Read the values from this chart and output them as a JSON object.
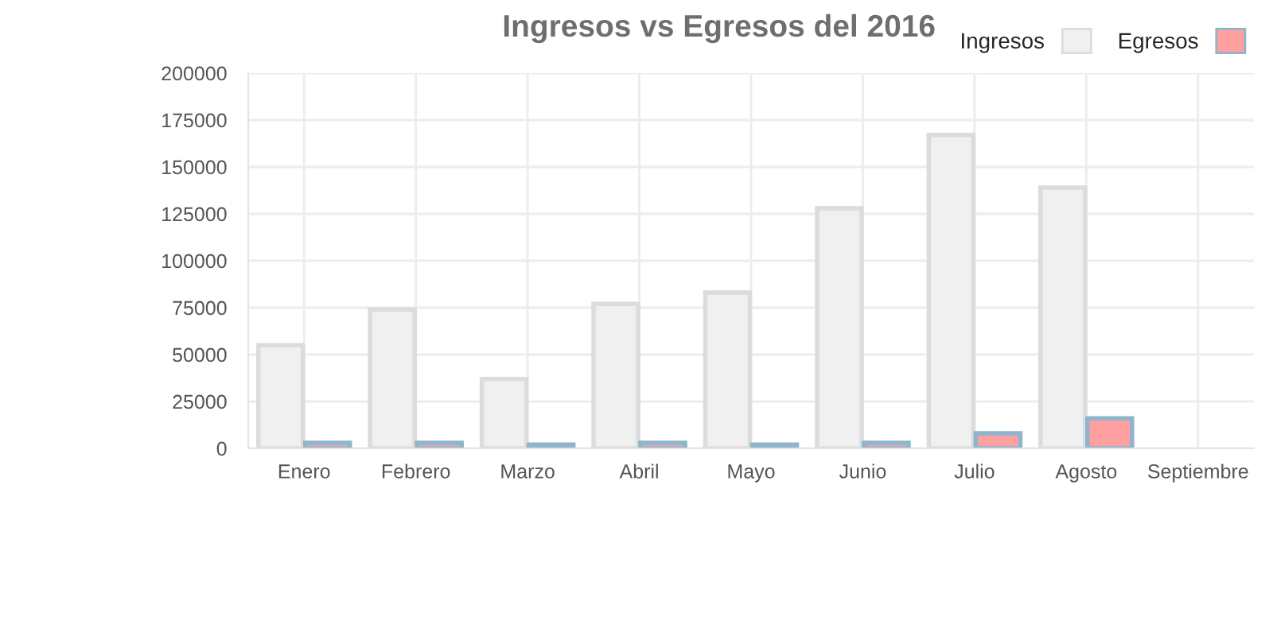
{
  "chart_data": [
    {
      "type": "bar",
      "title": "Ingresos vs Egresos del 2016",
      "categories": [
        "Enero",
        "Febrero",
        "Marzo",
        "Abril",
        "Mayo",
        "Junio",
        "Julio",
        "Agosto",
        "Septiembre"
      ],
      "series": [
        {
          "name": "Ingresos",
          "color": "#f0f0f0",
          "values": [
            55000,
            74000,
            37000,
            77000,
            83000,
            128000,
            167000,
            139000,
            0
          ]
        },
        {
          "name": "Egresos",
          "color": "#ffa0a0",
          "values": [
            3000,
            3000,
            2000,
            3000,
            2000,
            3000,
            8000,
            16000,
            0
          ]
        }
      ],
      "ylim": [
        0,
        200000
      ],
      "yticks": [
        0,
        25000,
        50000,
        75000,
        100000,
        125000,
        150000,
        175000,
        200000
      ],
      "grid": true,
      "legend": "top right"
    }
  ]
}
